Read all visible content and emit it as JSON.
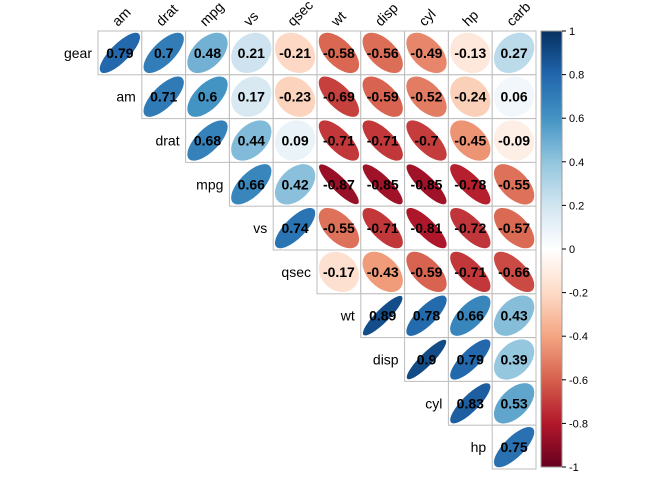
{
  "chart_data": {
    "type": "heatmap",
    "style": "upper-triangle correlation matrix with ellipse glyphs",
    "title": "",
    "variables": [
      "gear",
      "am",
      "drat",
      "mpg",
      "vs",
      "qsec",
      "wt",
      "disp",
      "cyl",
      "hp",
      "carb"
    ],
    "rows": [
      "gear",
      "am",
      "drat",
      "mpg",
      "vs",
      "qsec",
      "wt",
      "disp",
      "cyl",
      "hp"
    ],
    "columns": [
      "am",
      "drat",
      "mpg",
      "vs",
      "qsec",
      "wt",
      "disp",
      "cyl",
      "hp",
      "carb"
    ],
    "matrix": [
      [
        "0.79",
        "0.7",
        "0.48",
        "0.21",
        "-0.21",
        "-0.58",
        "-0.56",
        "-0.49",
        "-0.13",
        "0.27"
      ],
      [
        null,
        "0.71",
        "0.6",
        "0.17",
        "-0.23",
        "-0.69",
        "-0.59",
        "-0.52",
        "-0.24",
        "0.06"
      ],
      [
        null,
        null,
        "0.68",
        "0.44",
        "0.09",
        "-0.71",
        "-0.71",
        "-0.7",
        "-0.45",
        "-0.09"
      ],
      [
        null,
        null,
        null,
        "0.66",
        "0.42",
        "-0.87",
        "-0.85",
        "-0.85",
        "-0.78",
        "-0.55"
      ],
      [
        null,
        null,
        null,
        null,
        "0.74",
        "-0.55",
        "-0.71",
        "-0.81",
        "-0.72",
        "-0.57"
      ],
      [
        null,
        null,
        null,
        null,
        null,
        "-0.17",
        "-0.43",
        "-0.59",
        "-0.71",
        "-0.66"
      ],
      [
        null,
        null,
        null,
        null,
        null,
        null,
        "0.89",
        "0.78",
        "0.66",
        "0.43"
      ],
      [
        null,
        null,
        null,
        null,
        null,
        null,
        null,
        "0.9",
        "0.79",
        "0.39"
      ],
      [
        null,
        null,
        null,
        null,
        null,
        null,
        null,
        null,
        "0.83",
        "0.53"
      ],
      [
        null,
        null,
        null,
        null,
        null,
        null,
        null,
        null,
        null,
        "0.75"
      ]
    ],
    "colorbar": {
      "range": [
        -1,
        1
      ],
      "ticks": [
        "1",
        "0.8",
        "0.6",
        "0.4",
        "0.2",
        "0",
        "-0.2",
        "-0.4",
        "-0.6",
        "-0.8",
        "-1"
      ],
      "colors": {
        "negative": "#b2182b",
        "mid": "#ffffff",
        "positive": "#2166ac"
      }
    },
    "grid": true,
    "legend_position": "right"
  }
}
